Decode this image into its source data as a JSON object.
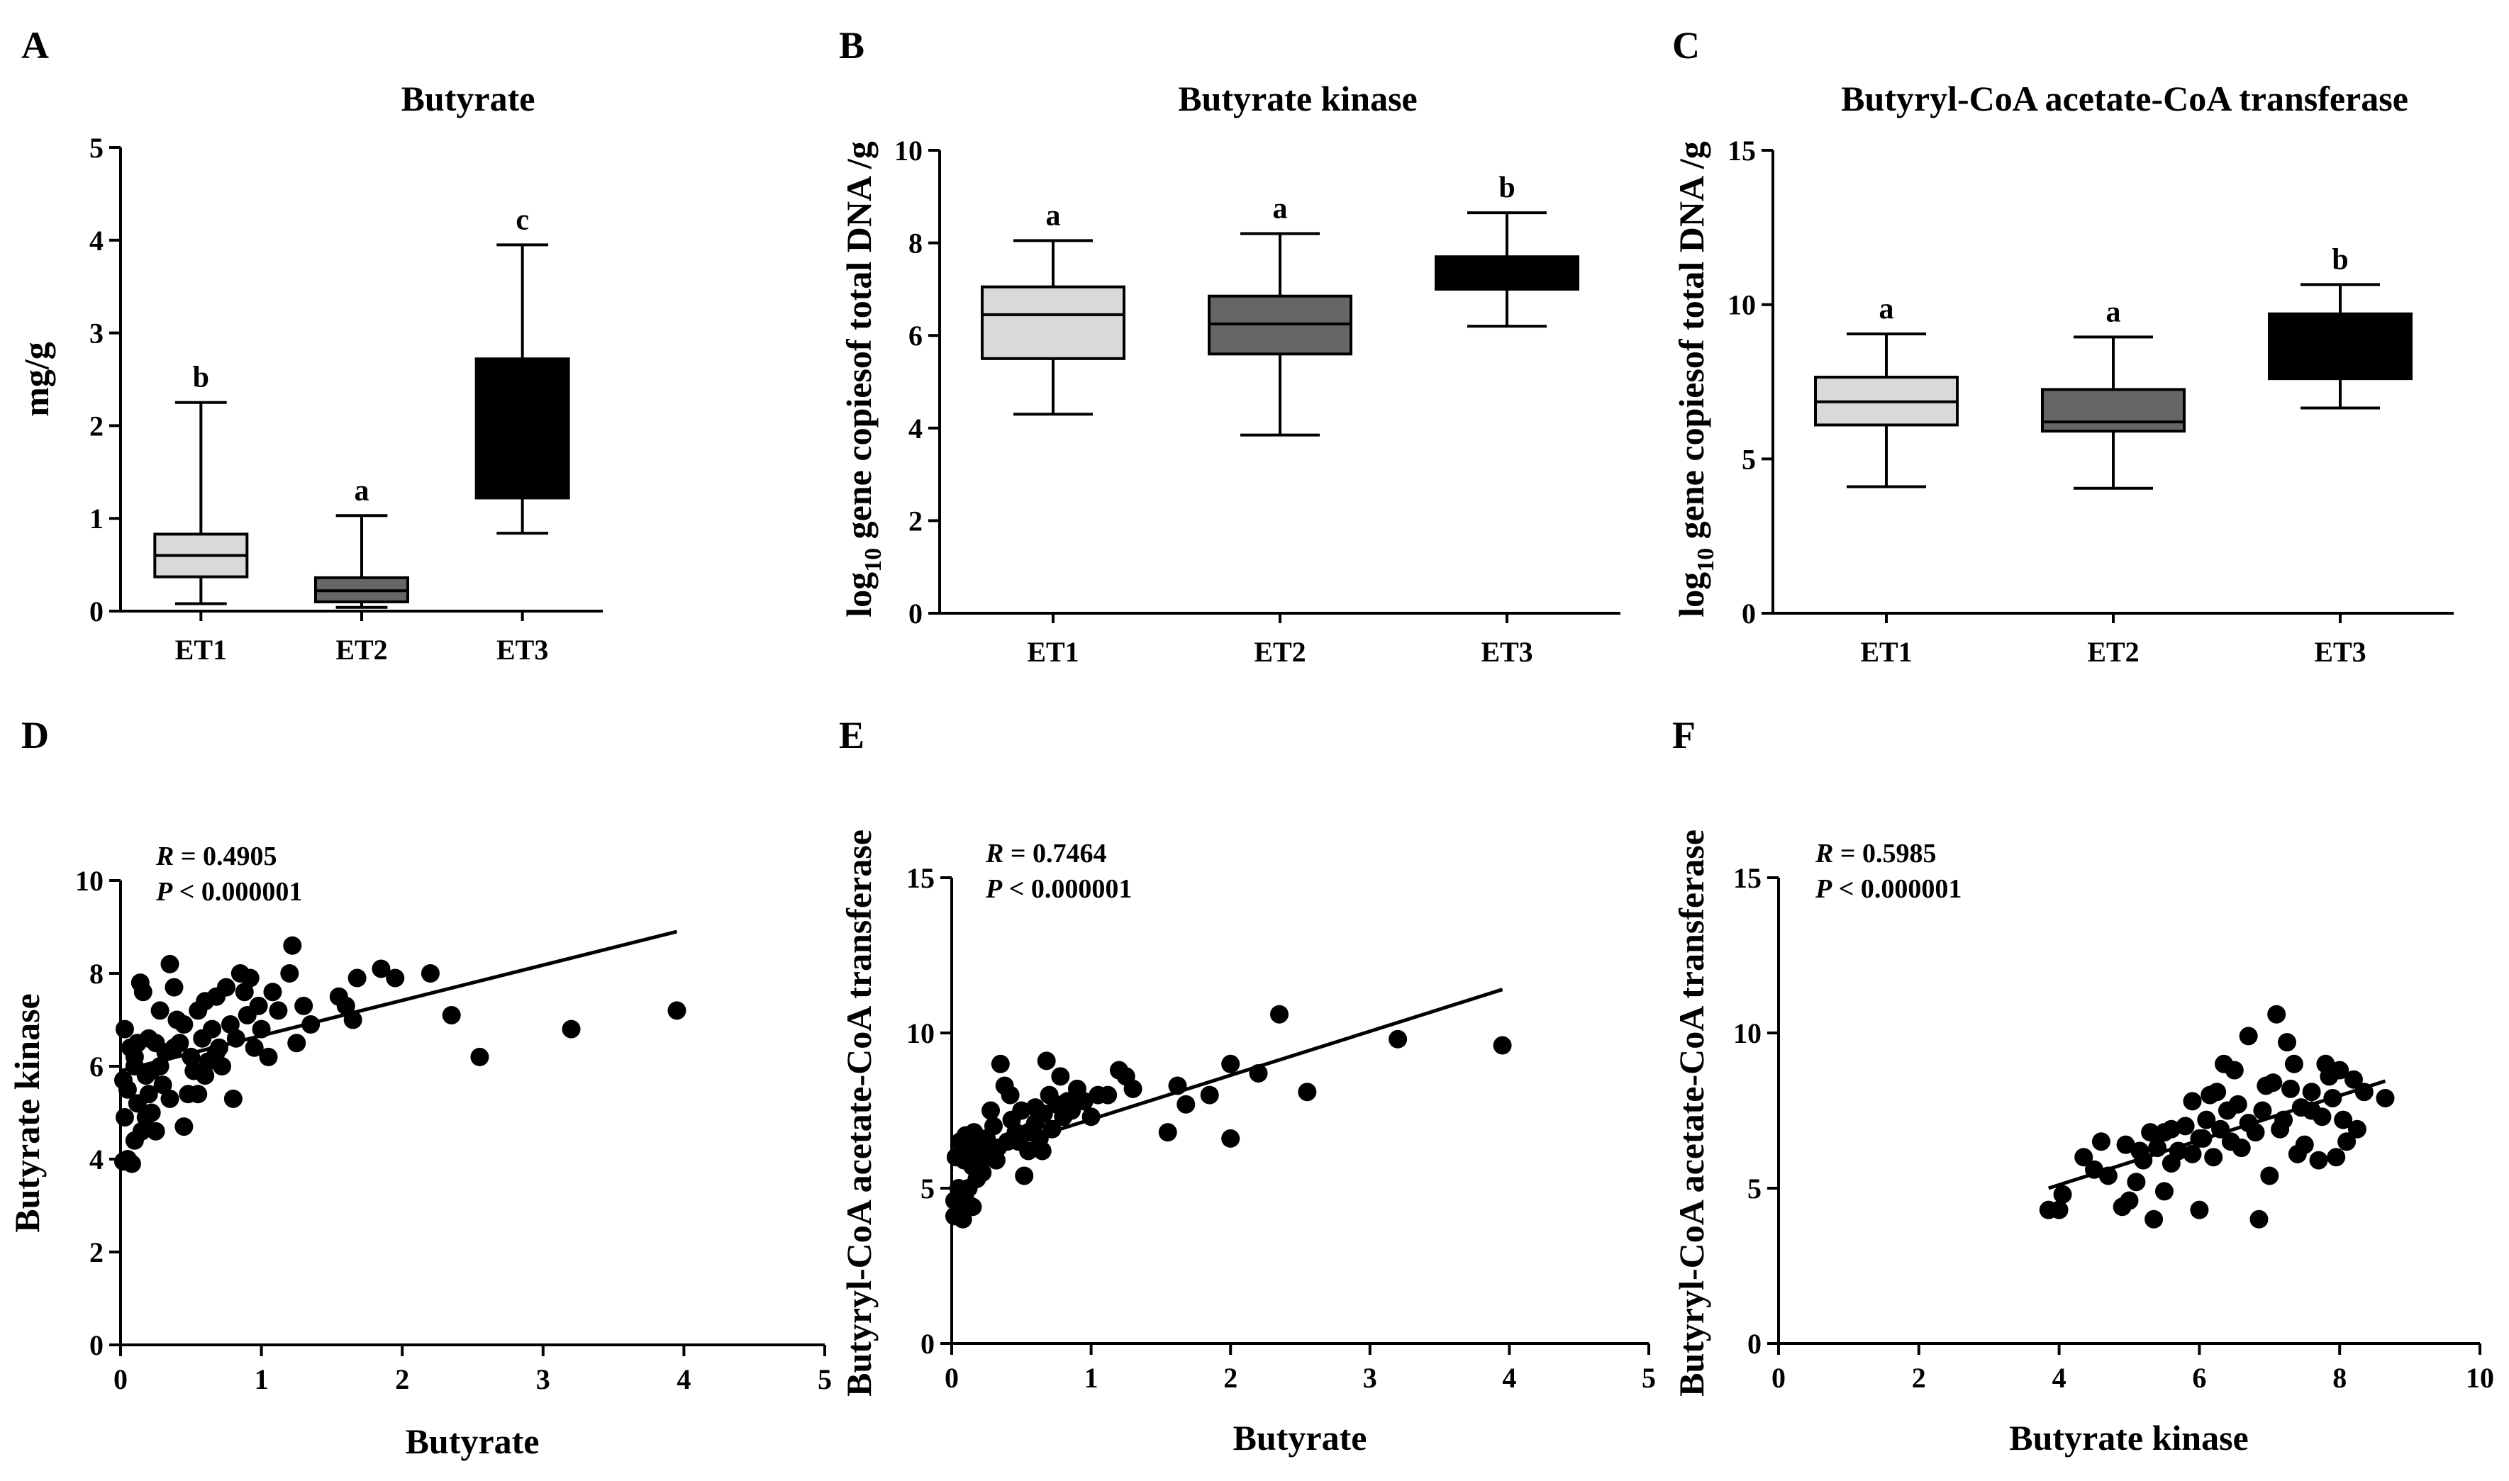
{
  "chart_data": [
    {
      "panel": "A",
      "type": "box",
      "title": "Butyrate",
      "xlabel": "",
      "ylabel": "mg/g",
      "ylim": [
        0,
        5
      ],
      "yticks": [
        0,
        1,
        2,
        3,
        4,
        5
      ],
      "categories": [
        "ET1",
        "ET2",
        "ET3"
      ],
      "boxes": [
        {
          "name": "ET1",
          "min": 0.08,
          "q1": 0.37,
          "median": 0.6,
          "q3": 0.83,
          "max": 2.25,
          "label": "b",
          "color": "#d9d9d9"
        },
        {
          "name": "ET2",
          "min": 0.04,
          "q1": 0.1,
          "median": 0.22,
          "q3": 0.36,
          "max": 1.03,
          "label": "a",
          "color": "#666666"
        },
        {
          "name": "ET3",
          "min": 0.84,
          "q1": 1.22,
          "median": 1.9,
          "q3": 2.72,
          "max": 3.95,
          "label": "c",
          "color": "#000000"
        }
      ]
    },
    {
      "panel": "B",
      "type": "box",
      "title": "Butyrate kinase",
      "xlabel": "",
      "ylabel_main": "log",
      "ylabel_sub": "10",
      "ylabel_rest": " gene copiesof total DNA /g",
      "ylim": [
        0,
        10
      ],
      "yticks": [
        0,
        2,
        4,
        6,
        8,
        10
      ],
      "categories": [
        "ET1",
        "ET2",
        "ET3"
      ],
      "boxes": [
        {
          "name": "ET1",
          "min": 4.3,
          "q1": 5.5,
          "median": 6.45,
          "q3": 7.05,
          "max": 8.05,
          "label": "a",
          "color": "#d9d9d9"
        },
        {
          "name": "ET2",
          "min": 3.85,
          "q1": 5.6,
          "median": 6.25,
          "q3": 6.85,
          "max": 8.2,
          "label": "a",
          "color": "#666666"
        },
        {
          "name": "ET3",
          "min": 6.2,
          "q1": 7.0,
          "median": 7.35,
          "q3": 7.7,
          "max": 8.65,
          "label": "b",
          "color": "#000000"
        }
      ]
    },
    {
      "panel": "C",
      "type": "box",
      "title": "Butyryl-CoA acetate-CoA transferase",
      "xlabel": "",
      "ylabel_main": "log",
      "ylabel_sub": "10",
      "ylabel_rest": " gene copiesof total DNA /g",
      "ylim": [
        0,
        15
      ],
      "yticks": [
        0,
        5,
        10,
        15
      ],
      "categories": [
        "ET1",
        "ET2",
        "ET3"
      ],
      "boxes": [
        {
          "name": "ET1",
          "min": 4.1,
          "q1": 6.1,
          "median": 6.85,
          "q3": 7.65,
          "max": 9.05,
          "label": "a",
          "color": "#d9d9d9"
        },
        {
          "name": "ET2",
          "min": 4.05,
          "q1": 5.9,
          "median": 6.2,
          "q3": 7.25,
          "max": 8.95,
          "label": "a",
          "color": "#666666"
        },
        {
          "name": "ET3",
          "min": 6.65,
          "q1": 7.6,
          "median": 8.3,
          "q3": 9.7,
          "max": 10.65,
          "label": "b",
          "color": "#000000"
        }
      ]
    },
    {
      "panel": "D",
      "type": "scatter",
      "xlabel": "Butyrate",
      "ylabel": "Butyrate kinase",
      "xlim": [
        0,
        5
      ],
      "ylim": [
        0,
        10
      ],
      "xticks": [
        0,
        1,
        2,
        3,
        4,
        5
      ],
      "yticks": [
        0,
        2,
        4,
        6,
        8,
        10
      ],
      "r_label": "R",
      "r_value": " = 0.4905",
      "p_label": "P",
      "p_value": " < 0.000001",
      "fit": {
        "x1": 0,
        "y1": 5.9,
        "x2": 3.95,
        "y2": 8.9
      },
      "points": [
        [
          0.02,
          3.95
        ],
        [
          0.05,
          4.0
        ],
        [
          0.08,
          3.9
        ],
        [
          0.03,
          4.9
        ],
        [
          0.05,
          5.5
        ],
        [
          0.1,
          6.0
        ],
        [
          0.12,
          5.2
        ],
        [
          0.15,
          4.6
        ],
        [
          0.18,
          4.9
        ],
        [
          0.2,
          5.4
        ],
        [
          0.03,
          6.8
        ],
        [
          0.07,
          6.4
        ],
        [
          0.1,
          6.2
        ],
        [
          0.14,
          7.8
        ],
        [
          0.16,
          7.6
        ],
        [
          0.2,
          6.6
        ],
        [
          0.22,
          5.9
        ],
        [
          0.25,
          6.5
        ],
        [
          0.28,
          6.0
        ],
        [
          0.3,
          5.6
        ],
        [
          0.32,
          6.3
        ],
        [
          0.35,
          8.2
        ],
        [
          0.38,
          7.7
        ],
        [
          0.4,
          7.0
        ],
        [
          0.42,
          6.5
        ],
        [
          0.45,
          6.9
        ],
        [
          0.48,
          5.4
        ],
        [
          0.5,
          6.2
        ],
        [
          0.52,
          5.9
        ],
        [
          0.55,
          7.2
        ],
        [
          0.58,
          6.6
        ],
        [
          0.6,
          7.4
        ],
        [
          0.62,
          6.1
        ],
        [
          0.65,
          6.8
        ],
        [
          0.68,
          7.5
        ],
        [
          0.7,
          6.4
        ],
        [
          0.72,
          6.0
        ],
        [
          0.75,
          7.7
        ],
        [
          0.78,
          6.9
        ],
        [
          0.8,
          5.3
        ],
        [
          0.82,
          6.6
        ],
        [
          0.85,
          8.0
        ],
        [
          0.88,
          7.6
        ],
        [
          0.9,
          7.1
        ],
        [
          0.92,
          7.9
        ],
        [
          0.95,
          6.4
        ],
        [
          0.98,
          7.3
        ],
        [
          1.0,
          6.8
        ],
        [
          1.05,
          6.2
        ],
        [
          1.08,
          7.6
        ],
        [
          1.12,
          7.2
        ],
        [
          1.2,
          8.0
        ],
        [
          1.22,
          8.6
        ],
        [
          1.25,
          6.5
        ],
        [
          1.3,
          7.3
        ],
        [
          1.35,
          6.9
        ],
        [
          1.55,
          7.5
        ],
        [
          1.6,
          7.3
        ],
        [
          1.65,
          7.0
        ],
        [
          1.68,
          7.9
        ],
        [
          1.85,
          8.1
        ],
        [
          1.95,
          7.9
        ],
        [
          2.2,
          8.0
        ],
        [
          2.35,
          7.1
        ],
        [
          2.55,
          6.2
        ],
        [
          3.2,
          6.8
        ],
        [
          3.95,
          7.2
        ],
        [
          0.25,
          4.6
        ],
        [
          0.35,
          5.3
        ],
        [
          0.45,
          4.7
        ],
        [
          0.55,
          5.4
        ],
        [
          0.6,
          5.8
        ],
        [
          0.12,
          6.5
        ],
        [
          0.18,
          5.8
        ],
        [
          0.28,
          7.2
        ],
        [
          0.38,
          6.4
        ],
        [
          0.68,
          6.3
        ],
        [
          0.02,
          5.7
        ],
        [
          0.1,
          4.4
        ],
        [
          0.22,
          5.0
        ]
      ]
    },
    {
      "panel": "E",
      "type": "scatter",
      "xlabel": "Butyrate",
      "ylabel": "Butyryl-CoA acetate-CoA transferase",
      "xlim": [
        0,
        5
      ],
      "ylim": [
        0,
        15
      ],
      "xticks": [
        0,
        1,
        2,
        3,
        4,
        5
      ],
      "yticks": [
        0,
        5,
        10,
        15
      ],
      "r_label": "R",
      "r_value": " = 0.7464",
      "p_label": "P",
      "p_value": " < 0.000001",
      "fit": {
        "x1": 0,
        "y1": 5.8,
        "x2": 3.95,
        "y2": 11.4
      },
      "points": [
        [
          0.02,
          4.1
        ],
        [
          0.05,
          4.3
        ],
        [
          0.08,
          4.0
        ],
        [
          0.1,
          4.6
        ],
        [
          0.12,
          5.0
        ],
        [
          0.15,
          4.4
        ],
        [
          0.18,
          5.3
        ],
        [
          0.2,
          5.8
        ],
        [
          0.22,
          5.5
        ],
        [
          0.25,
          6.0
        ],
        [
          0.03,
          6.0
        ],
        [
          0.06,
          6.5
        ],
        [
          0.09,
          5.9
        ],
        [
          0.12,
          6.2
        ],
        [
          0.16,
          6.8
        ],
        [
          0.2,
          6.4
        ],
        [
          0.25,
          6.6
        ],
        [
          0.28,
          6.1
        ],
        [
          0.3,
          7.0
        ],
        [
          0.33,
          6.3
        ],
        [
          0.35,
          9.0
        ],
        [
          0.38,
          8.3
        ],
        [
          0.4,
          6.5
        ],
        [
          0.43,
          7.2
        ],
        [
          0.46,
          6.8
        ],
        [
          0.5,
          7.5
        ],
        [
          0.52,
          5.4
        ],
        [
          0.55,
          6.2
        ],
        [
          0.58,
          6.9
        ],
        [
          0.6,
          7.1
        ],
        [
          0.63,
          6.6
        ],
        [
          0.66,
          7.4
        ],
        [
          0.68,
          9.1
        ],
        [
          0.7,
          8.0
        ],
        [
          0.72,
          6.9
        ],
        [
          0.75,
          7.7
        ],
        [
          0.78,
          8.6
        ],
        [
          0.8,
          7.3
        ],
        [
          0.83,
          7.8
        ],
        [
          0.86,
          7.5
        ],
        [
          0.9,
          8.2
        ],
        [
          0.95,
          7.8
        ],
        [
          1.0,
          7.3
        ],
        [
          1.05,
          8.0
        ],
        [
          1.12,
          8.0
        ],
        [
          1.2,
          8.8
        ],
        [
          1.25,
          8.6
        ],
        [
          1.3,
          8.2
        ],
        [
          1.55,
          6.8
        ],
        [
          1.62,
          8.3
        ],
        [
          1.68,
          7.7
        ],
        [
          1.85,
          8.0
        ],
        [
          2.0,
          6.6
        ],
        [
          2.0,
          9.0
        ],
        [
          2.2,
          8.7
        ],
        [
          2.35,
          10.6
        ],
        [
          2.55,
          8.1
        ],
        [
          3.2,
          9.8
        ],
        [
          3.95,
          9.6
        ],
        [
          0.05,
          5.0
        ],
        [
          0.15,
          5.7
        ],
        [
          0.28,
          7.5
        ],
        [
          0.42,
          8.0
        ],
        [
          0.55,
          6.8
        ],
        [
          0.65,
          6.2
        ],
        [
          0.32,
          5.9
        ],
        [
          0.48,
          6.5
        ],
        [
          0.1,
          6.7
        ],
        [
          0.02,
          4.6
        ],
        [
          0.6,
          7.6
        ]
      ]
    },
    {
      "panel": "F",
      "type": "scatter",
      "xlabel": "Butyrate kinase",
      "ylabel": "Butyryl-CoA acetate-CoA transferase",
      "xlim": [
        0,
        10
      ],
      "ylim": [
        0,
        15
      ],
      "xticks": [
        0,
        2,
        4,
        6,
        8,
        10
      ],
      "yticks": [
        0,
        5,
        10,
        15
      ],
      "r_label": "R",
      "r_value": " = 0.5985",
      "p_label": "P",
      "p_value": " < 0.000001",
      "fit": {
        "x1": 3.85,
        "y1": 5.0,
        "x2": 8.65,
        "y2": 8.45
      },
      "points": [
        [
          3.85,
          4.3
        ],
        [
          4.0,
          4.3
        ],
        [
          4.05,
          4.8
        ],
        [
          4.35,
          6.0
        ],
        [
          4.6,
          6.5
        ],
        [
          4.7,
          5.4
        ],
        [
          4.9,
          4.4
        ],
        [
          4.95,
          6.4
        ],
        [
          5.0,
          4.6
        ],
        [
          5.1,
          5.2
        ],
        [
          5.2,
          5.9
        ],
        [
          5.3,
          6.8
        ],
        [
          5.35,
          4.0
        ],
        [
          5.4,
          6.3
        ],
        [
          5.5,
          4.9
        ],
        [
          5.5,
          6.8
        ],
        [
          5.6,
          5.8
        ],
        [
          5.7,
          6.2
        ],
        [
          5.8,
          7.0
        ],
        [
          5.9,
          6.1
        ],
        [
          5.9,
          7.8
        ],
        [
          6.0,
          4.3
        ],
        [
          6.05,
          6.6
        ],
        [
          6.1,
          7.2
        ],
        [
          6.2,
          6.0
        ],
        [
          6.25,
          8.1
        ],
        [
          6.3,
          6.9
        ],
        [
          6.35,
          9.0
        ],
        [
          6.4,
          7.5
        ],
        [
          6.45,
          6.5
        ],
        [
          6.5,
          8.8
        ],
        [
          6.55,
          7.7
        ],
        [
          6.6,
          6.3
        ],
        [
          6.7,
          7.1
        ],
        [
          6.8,
          6.8
        ],
        [
          6.85,
          4.0
        ],
        [
          6.9,
          7.5
        ],
        [
          7.0,
          5.4
        ],
        [
          7.05,
          8.4
        ],
        [
          7.1,
          10.6
        ],
        [
          7.15,
          6.9
        ],
        [
          7.2,
          7.2
        ],
        [
          7.3,
          8.2
        ],
        [
          7.35,
          9.0
        ],
        [
          7.4,
          6.1
        ],
        [
          7.45,
          7.6
        ],
        [
          7.5,
          6.4
        ],
        [
          7.6,
          8.1
        ],
        [
          7.7,
          5.9
        ],
        [
          7.75,
          7.3
        ],
        [
          7.8,
          9.0
        ],
        [
          7.85,
          8.6
        ],
        [
          7.9,
          7.9
        ],
        [
          7.95,
          6.0
        ],
        [
          8.0,
          8.8
        ],
        [
          8.05,
          7.2
        ],
        [
          8.1,
          6.5
        ],
        [
          8.2,
          8.5
        ],
        [
          8.25,
          6.9
        ],
        [
          8.35,
          8.1
        ],
        [
          8.65,
          7.9
        ],
        [
          6.0,
          6.6
        ],
        [
          5.6,
          6.9
        ],
        [
          6.7,
          9.9
        ],
        [
          7.25,
          9.7
        ],
        [
          6.15,
          8.0
        ],
        [
          5.15,
          6.2
        ],
        [
          4.5,
          5.6
        ],
        [
          6.95,
          8.3
        ],
        [
          7.6,
          7.5
        ]
      ]
    }
  ]
}
